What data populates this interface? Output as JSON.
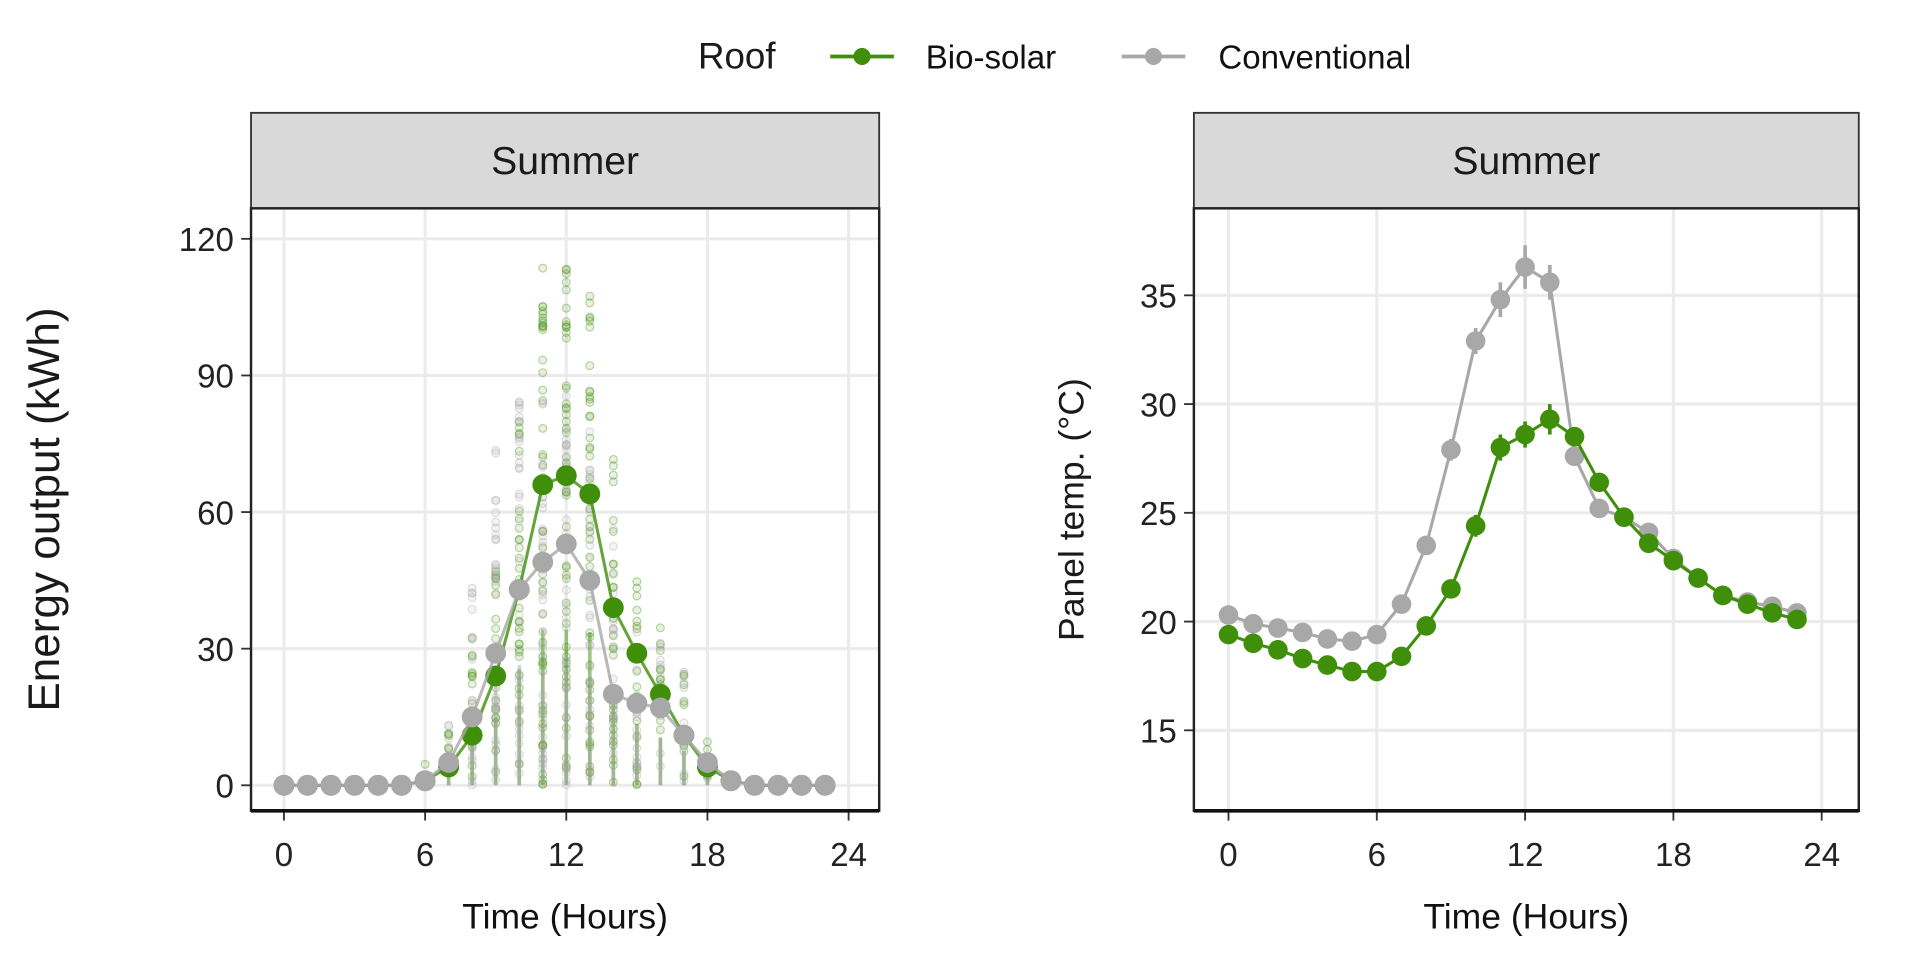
{
  "legend": {
    "title": "Roof",
    "items": [
      {
        "label": "Bio-solar",
        "color": "#3f8f0a"
      },
      {
        "label": "Conventional",
        "color": "#a8a8a8"
      }
    ]
  },
  "chart_data": [
    {
      "type": "line",
      "panel": "Summer",
      "xlabel": "Time (Hours)",
      "ylabel": "Energy output (kWh)",
      "xlim": [
        -1.4,
        25.3
      ],
      "ylim": [
        -5.6,
        126.7
      ],
      "xticks": [
        0,
        6,
        12,
        18,
        24
      ],
      "yticks": [
        0,
        30,
        60,
        90,
        120
      ],
      "grid": true,
      "legend": "top",
      "x": [
        0,
        1,
        2,
        3,
        4,
        5,
        6,
        7,
        8,
        9,
        10,
        11,
        12,
        13,
        14,
        15,
        16,
        17,
        18,
        19,
        20,
        21,
        22,
        23
      ],
      "series": [
        {
          "name": "Bio-solar",
          "color": "#3f8f0a",
          "values": [
            0,
            0,
            0,
            0,
            0,
            0,
            1,
            4,
            11,
            24,
            43,
            66,
            68,
            64,
            39,
            29,
            20,
            11,
            4,
            1,
            0,
            0,
            0,
            0
          ],
          "raw_max": [
            0,
            0,
            0,
            0,
            0,
            0,
            5,
            15,
            35,
            50,
            85,
            114,
            114,
            112,
            72,
            45,
            35,
            25,
            10,
            2,
            0,
            0,
            0,
            0
          ],
          "raw_min": [
            0,
            0,
            0,
            0,
            0,
            0,
            0,
            0,
            0,
            0,
            0,
            0,
            0,
            0,
            0,
            0,
            0,
            0,
            0,
            0,
            0,
            0,
            0,
            0
          ]
        },
        {
          "name": "Conventional",
          "color": "#a8a8a8",
          "values": [
            0,
            0,
            0,
            0,
            0,
            0,
            1,
            5,
            15,
            29,
            43,
            49,
            53,
            45,
            20,
            18,
            17,
            11,
            5,
            1,
            0,
            0,
            0,
            0
          ],
          "raw_max": [
            0,
            0,
            0,
            0,
            0,
            0,
            3,
            15,
            47,
            77,
            88,
            87,
            86,
            80,
            60,
            40,
            35,
            25,
            8,
            2,
            0,
            0,
            0,
            0
          ],
          "raw_min": [
            0,
            0,
            0,
            0,
            0,
            0,
            0,
            0,
            0,
            0,
            0,
            0,
            0,
            0,
            0,
            0,
            0,
            0,
            0,
            0,
            0,
            0,
            0,
            0
          ]
        }
      ]
    },
    {
      "type": "line",
      "panel": "Summer",
      "xlabel": "Time (Hours)",
      "ylabel": "Panel temp. (°C)",
      "xlim": [
        -1.4,
        25.5
      ],
      "ylim": [
        11.3,
        39.0
      ],
      "xticks": [
        0,
        6,
        12,
        18,
        24
      ],
      "yticks": [
        15,
        20,
        25,
        30,
        35
      ],
      "grid": true,
      "legend": "top",
      "x": [
        0,
        1,
        2,
        3,
        4,
        5,
        6,
        7,
        8,
        9,
        10,
        11,
        12,
        13,
        14,
        15,
        16,
        17,
        18,
        19,
        20,
        21,
        22,
        23
      ],
      "series": [
        {
          "name": "Bio-solar",
          "color": "#3f8f0a",
          "values": [
            19.4,
            19.0,
            18.7,
            18.3,
            18.0,
            17.7,
            17.7,
            18.4,
            19.8,
            21.5,
            24.4,
            28.0,
            28.6,
            29.3,
            28.5,
            26.4,
            24.8,
            23.6,
            22.8,
            22.0,
            21.2,
            20.8,
            20.4,
            20.1
          ],
          "error": [
            0.3,
            0.3,
            0.3,
            0.3,
            0.3,
            0.3,
            0.3,
            0.3,
            0.3,
            0.4,
            0.5,
            0.6,
            0.6,
            0.7,
            0.4,
            0.4,
            0.3,
            0.3,
            0.3,
            0.3,
            0.3,
            0.3,
            0.3,
            0.3
          ]
        },
        {
          "name": "Conventional",
          "color": "#a8a8a8",
          "values": [
            20.3,
            19.9,
            19.7,
            19.5,
            19.2,
            19.1,
            19.4,
            20.8,
            23.5,
            27.9,
            32.9,
            34.8,
            36.3,
            35.6,
            27.6,
            25.2,
            24.8,
            24.1,
            22.9,
            22.0,
            21.2,
            20.9,
            20.7,
            20.4
          ],
          "error": [
            0.3,
            0.3,
            0.3,
            0.3,
            0.3,
            0.3,
            0.3,
            0.3,
            0.4,
            0.5,
            0.6,
            0.8,
            1.0,
            0.8,
            0.4,
            0.4,
            0.3,
            0.3,
            0.3,
            0.3,
            0.3,
            0.3,
            0.3,
            0.3
          ]
        }
      ]
    }
  ]
}
